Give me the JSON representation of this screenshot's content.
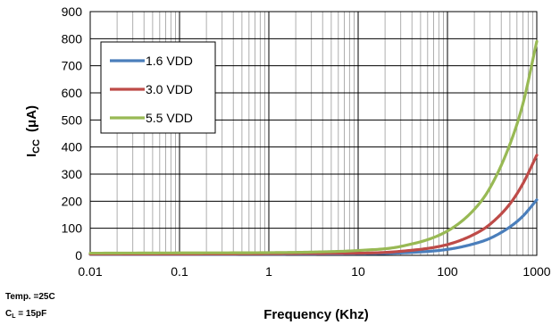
{
  "chart_data": {
    "type": "line",
    "title": "",
    "xlabel": "Frequency (Khz)",
    "ylabel_main": "I",
    "ylabel_sub": "CC",
    "ylabel_unit": "(μA)",
    "x_scale": "log",
    "xlim": [
      0.01,
      1000
    ],
    "ylim": [
      0,
      900
    ],
    "x_ticks": [
      0.01,
      0.1,
      1,
      10,
      100,
      1000
    ],
    "x_tick_labels": [
      "0.01",
      "0.1",
      "1",
      "10",
      "100",
      "1000"
    ],
    "y_ticks": [
      0,
      100,
      200,
      300,
      400,
      500,
      600,
      700,
      800,
      900
    ],
    "y_tick_labels": [
      "0",
      "100",
      "200",
      "300",
      "400",
      "500",
      "600",
      "700",
      "800",
      "900"
    ],
    "grid": true,
    "legend_position": "top-left",
    "series": [
      {
        "name": "1.6 VDD",
        "color": "#4a7ebb",
        "x": [
          0.01,
          0.1,
          1,
          3,
          10,
          30,
          100,
          200,
          300,
          500,
          700,
          1000
        ],
        "y": [
          4,
          4,
          4.5,
          5,
          6,
          9,
          22,
          43,
          63,
          105,
          145,
          205
        ]
      },
      {
        "name": "3.0 VDD",
        "color": "#be4b48",
        "x": [
          0.01,
          0.1,
          1,
          3,
          10,
          30,
          100,
          200,
          300,
          500,
          700,
          1000
        ],
        "y": [
          5,
          5,
          6,
          7,
          8,
          15,
          40,
          78,
          115,
          190,
          265,
          370
        ]
      },
      {
        "name": "5.5 VDD",
        "color": "#98b954",
        "x": [
          0.01,
          0.1,
          1,
          3,
          10,
          30,
          100,
          200,
          300,
          500,
          700,
          1000
        ],
        "y": [
          8,
          9,
          10,
          12,
          18,
          33,
          90,
          170,
          250,
          410,
          560,
          790
        ]
      }
    ]
  },
  "conditions": {
    "temp": "Temp. =25C",
    "cl_main": "C",
    "cl_sub": "L",
    "cl_value": " = 15pF"
  }
}
